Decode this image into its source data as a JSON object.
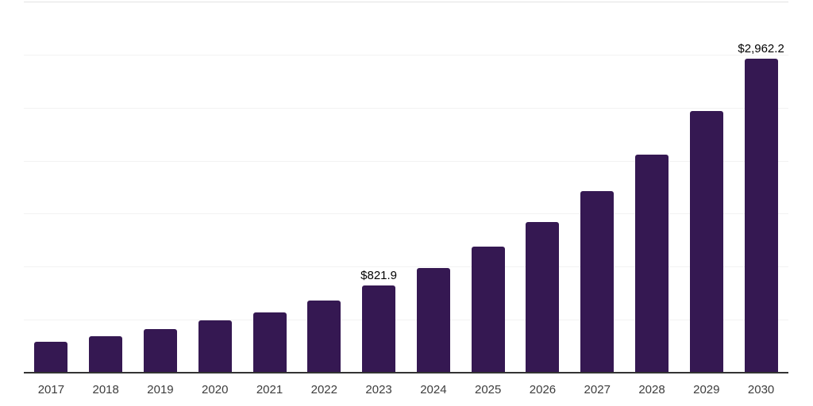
{
  "chart_data": {
    "type": "bar",
    "categories": [
      "2017",
      "2018",
      "2019",
      "2020",
      "2021",
      "2022",
      "2023",
      "2024",
      "2025",
      "2026",
      "2027",
      "2028",
      "2029",
      "2030"
    ],
    "values": [
      290,
      345,
      412,
      490,
      570,
      683,
      821.9,
      987,
      1186,
      1424,
      1710,
      2054,
      2466,
      2962.2
    ],
    "data_labels": [
      {
        "category": "2023",
        "label": "$821.9"
      },
      {
        "category": "2030",
        "label": "$2,962.2"
      }
    ],
    "xlabel": "",
    "ylabel": "",
    "ylim": [
      0,
      3500
    ],
    "gridline_step": 500,
    "grid": true,
    "legend": "none",
    "bar_color": "#351852",
    "axis_line_color": "#333333",
    "gridline_color": "#f2f2f2",
    "top_border_color": "#e3e3e3",
    "xtick_color": "#3d3d3d",
    "data_label_color": "#000000"
  }
}
